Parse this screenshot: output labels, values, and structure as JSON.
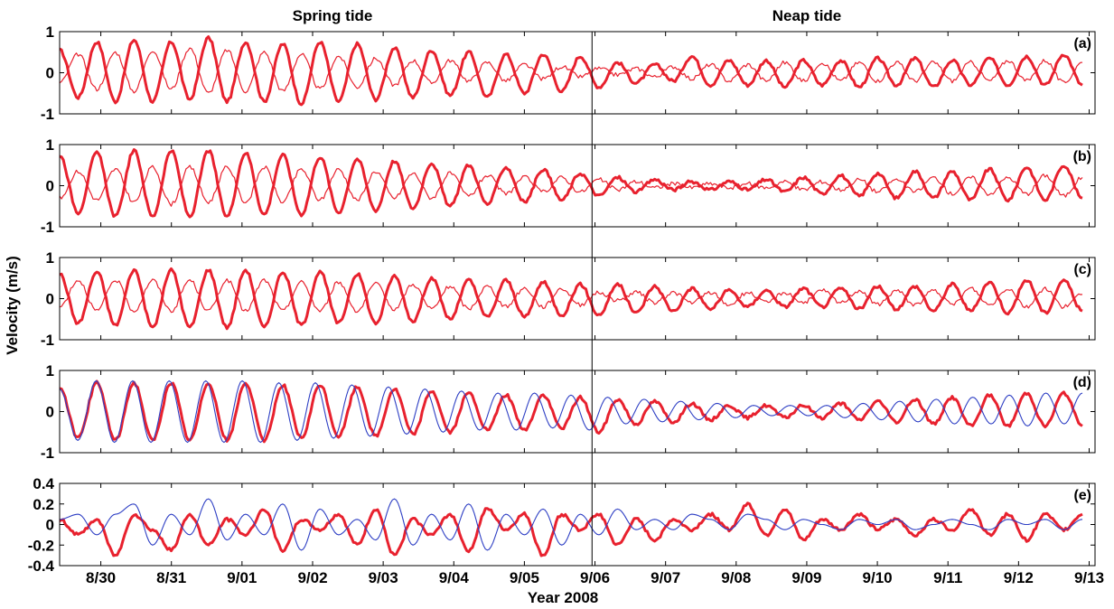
{
  "chart_data": {
    "type": "line",
    "headers": [
      "Spring tide",
      "Neap tide"
    ],
    "ylabel": "Velocity (m/s)",
    "xlabel": "Year 2008",
    "x_range": [
      "2008-08-29T10:00",
      "2008-09-13T02:00"
    ],
    "x_ticks": [
      "8/30",
      "8/31",
      "9/01",
      "9/02",
      "9/03",
      "9/04",
      "9/05",
      "9/06",
      "9/07",
      "9/08",
      "9/09",
      "9/10",
      "9/11",
      "9/12",
      "9/13"
    ],
    "tide_boundary": "2008-09-05T23:00",
    "colors": {
      "observed": "#e8212e",
      "model": "#2e3fc4",
      "axes": "#000000"
    },
    "panels": [
      {
        "label": "(a)",
        "ylim": [
          -1,
          1
        ],
        "yticks": [
          "1",
          "0",
          "-1"
        ],
        "series": [
          {
            "color": "#e8212e",
            "style": "thick",
            "values": [
              0.55,
              -0.6,
              0.75,
              -0.7,
              0.8,
              -0.7,
              0.75,
              -0.65,
              0.85,
              -0.7,
              0.75,
              -0.7,
              0.7,
              -0.75,
              0.75,
              -0.7,
              0.7,
              -0.65,
              0.6,
              -0.6,
              0.55,
              -0.55,
              0.5,
              -0.6,
              0.45,
              -0.5,
              0.45,
              -0.45,
              0.4,
              -0.35,
              0.25,
              -0.25,
              0.2,
              -0.2,
              0.4,
              -0.3,
              0.3,
              -0.3,
              0.3,
              -0.35,
              0.3,
              -0.3,
              0.3,
              -0.35,
              0.35,
              -0.3,
              0.35,
              -0.35,
              0.3,
              -0.3,
              0.35,
              -0.3,
              0.4,
              -0.3,
              0.45,
              -0.3
            ]
          },
          {
            "color": "#e8212e",
            "style": "thin",
            "values": [
              -0.25,
              0.45,
              -0.4,
              0.5,
              -0.45,
              0.55,
              -0.4,
              0.6,
              -0.5,
              0.55,
              -0.45,
              0.5,
              -0.45,
              0.45,
              -0.4,
              0.4,
              -0.35,
              0.35,
              -0.3,
              0.3,
              -0.25,
              0.3,
              -0.2,
              0.25,
              -0.2,
              0.2,
              -0.15,
              0.15,
              -0.1,
              0.1,
              -0.05,
              0.1,
              -0.1,
              0.15,
              -0.15,
              0.2,
              -0.2,
              0.2,
              -0.2,
              0.25,
              -0.2,
              0.25,
              -0.2,
              0.25,
              -0.2,
              0.25,
              -0.2,
              0.25,
              -0.2,
              0.25,
              -0.2,
              0.3,
              -0.2,
              0.3,
              -0.25,
              0.25
            ]
          }
        ]
      },
      {
        "label": "(b)",
        "ylim": [
          -1,
          1
        ],
        "yticks": [
          "1",
          "0",
          "-1"
        ],
        "series": [
          {
            "color": "#e8212e",
            "style": "thick",
            "values": [
              0.75,
              -0.65,
              0.8,
              -0.75,
              0.85,
              -0.75,
              0.85,
              -0.75,
              0.85,
              -0.75,
              0.8,
              -0.7,
              0.75,
              -0.7,
              0.7,
              -0.65,
              0.65,
              -0.6,
              0.6,
              -0.55,
              0.55,
              -0.5,
              0.5,
              -0.45,
              0.45,
              -0.4,
              0.4,
              -0.35,
              0.3,
              -0.25,
              0.2,
              -0.15,
              0.15,
              -0.1,
              0.1,
              -0.1,
              0.1,
              -0.1,
              0.15,
              -0.15,
              0.2,
              -0.2,
              0.25,
              -0.25,
              0.3,
              -0.3,
              0.35,
              -0.3,
              0.35,
              -0.35,
              0.4,
              -0.35,
              0.45,
              -0.35,
              0.5,
              -0.3
            ]
          },
          {
            "color": "#e8212e",
            "style": "thin",
            "values": [
              -0.3,
              0.35,
              -0.35,
              0.4,
              -0.4,
              0.45,
              -0.45,
              0.45,
              -0.4,
              0.45,
              -0.4,
              0.45,
              -0.4,
              0.4,
              -0.35,
              0.4,
              -0.35,
              0.35,
              -0.3,
              0.3,
              -0.3,
              0.3,
              -0.25,
              0.25,
              -0.2,
              0.2,
              -0.15,
              0.2,
              -0.15,
              0.15,
              -0.1,
              0.1,
              -0.05,
              0.05,
              -0.05,
              0.05,
              -0.05,
              0.05,
              -0.05,
              0.1,
              -0.1,
              0.1,
              -0.1,
              0.15,
              -0.15,
              0.15,
              -0.15,
              0.2,
              -0.2,
              0.2,
              -0.2,
              0.2,
              -0.2,
              0.25,
              -0.25,
              0.2
            ]
          }
        ]
      },
      {
        "label": "(c)",
        "ylim": [
          -1,
          1
        ],
        "yticks": [
          "1",
          "0",
          "-1"
        ],
        "series": [
          {
            "color": "#e8212e",
            "style": "thick",
            "values": [
              0.6,
              -0.6,
              0.65,
              -0.65,
              0.7,
              -0.7,
              0.7,
              -0.7,
              0.7,
              -0.7,
              0.7,
              -0.7,
              0.65,
              -0.65,
              0.65,
              -0.6,
              0.6,
              -0.6,
              0.55,
              -0.55,
              0.5,
              -0.5,
              0.45,
              -0.45,
              0.45,
              -0.45,
              0.4,
              -0.4,
              0.35,
              -0.4,
              0.35,
              -0.35,
              0.3,
              -0.3,
              0.25,
              -0.25,
              0.2,
              -0.2,
              0.2,
              -0.2,
              0.25,
              -0.2,
              0.25,
              -0.25,
              0.3,
              -0.25,
              0.3,
              -0.3,
              0.35,
              -0.3,
              0.4,
              -0.35,
              0.45,
              -0.35,
              0.45,
              -0.3
            ]
          },
          {
            "color": "#e8212e",
            "style": "thin",
            "values": [
              -0.2,
              0.45,
              -0.3,
              0.45,
              -0.3,
              0.45,
              -0.3,
              0.45,
              -0.3,
              0.45,
              -0.3,
              0.45,
              -0.3,
              0.4,
              -0.3,
              0.4,
              -0.3,
              0.35,
              -0.25,
              0.35,
              -0.25,
              0.3,
              -0.25,
              0.3,
              -0.2,
              0.25,
              -0.2,
              0.25,
              -0.15,
              0.15,
              -0.05,
              0.15,
              -0.1,
              0.15,
              -0.1,
              0.15,
              -0.15,
              0.15,
              -0.1,
              0.15,
              -0.1,
              0.2,
              -0.1,
              0.2,
              -0.15,
              0.2,
              -0.15,
              0.2,
              -0.15,
              0.25,
              -0.15,
              0.25,
              -0.2,
              0.25,
              -0.2,
              0.1
            ]
          }
        ]
      },
      {
        "label": "(d)",
        "ylim": [
          -1,
          1
        ],
        "yticks": [
          "1",
          "0",
          "-1"
        ],
        "series": [
          {
            "color": "#e8212e",
            "style": "thick",
            "values": [
              0.6,
              -0.65,
              0.7,
              -0.7,
              0.7,
              -0.7,
              0.7,
              -0.7,
              0.7,
              -0.7,
              0.7,
              -0.7,
              0.65,
              -0.65,
              0.65,
              -0.6,
              0.6,
              -0.6,
              0.55,
              -0.55,
              0.5,
              -0.5,
              0.45,
              -0.45,
              0.4,
              -0.45,
              0.4,
              -0.4,
              0.35,
              -0.5,
              0.3,
              -0.3,
              0.25,
              -0.25,
              0.2,
              -0.2,
              0.15,
              -0.15,
              0.15,
              -0.15,
              0.15,
              -0.15,
              0.2,
              -0.2,
              0.25,
              -0.25,
              0.3,
              -0.3,
              0.35,
              -0.35,
              0.4,
              -0.35,
              0.45,
              -0.35,
              0.45,
              -0.35
            ]
          },
          {
            "color": "#2e3fc4",
            "style": "model",
            "values": [
              0.55,
              -0.7,
              0.75,
              -0.75,
              0.75,
              -0.75,
              0.75,
              -0.75,
              0.75,
              -0.75,
              0.75,
              -0.75,
              0.7,
              -0.7,
              0.7,
              -0.65,
              0.65,
              -0.6,
              0.6,
              -0.55,
              0.55,
              -0.5,
              0.5,
              -0.45,
              0.45,
              -0.45,
              0.45,
              -0.4,
              0.4,
              -0.45,
              0.35,
              -0.3,
              0.3,
              -0.25,
              0.25,
              -0.2,
              0.2,
              -0.15,
              0.15,
              -0.1,
              0.15,
              -0.1,
              0.15,
              -0.15,
              0.2,
              -0.2,
              0.25,
              -0.25,
              0.3,
              -0.3,
              0.35,
              -0.3,
              0.4,
              -0.35,
              0.45,
              -0.3,
              0.45
            ]
          }
        ]
      },
      {
        "label": "(e)",
        "ylim": [
          -0.4,
          0.4
        ],
        "yticks": [
          "0.4",
          "0.2",
          "0",
          "-0.2",
          "-0.4"
        ],
        "series": [
          {
            "color": "#e8212e",
            "style": "thick",
            "values": [
              0.05,
              -0.1,
              0.05,
              -0.3,
              0.1,
              -0.05,
              -0.25,
              0.1,
              -0.2,
              0.05,
              -0.1,
              0.15,
              -0.25,
              0.05,
              -0.05,
              0.1,
              -0.2,
              0.15,
              -0.3,
              0.05,
              -0.1,
              0.1,
              -0.25,
              0.15,
              -0.05,
              0.1,
              -0.3,
              0.1,
              -0.05,
              0.1,
              -0.2,
              0.05,
              -0.15,
              0.05,
              -0.05,
              0.1,
              -0.05,
              0.2,
              -0.1,
              0.15,
              -0.15,
              0.05,
              -0.05,
              0.1,
              -0.05,
              0.05,
              -0.1,
              0.05,
              -0.05,
              0.15,
              -0.1,
              0.1,
              -0.15,
              0.1,
              -0.05,
              0.1
            ]
          },
          {
            "color": "#2e3fc4",
            "style": "model",
            "values": [
              0.05,
              0.1,
              -0.1,
              0.1,
              0.2,
              -0.2,
              0.1,
              -0.1,
              0.25,
              -0.15,
              0.1,
              -0.1,
              0.2,
              -0.25,
              0.15,
              -0.1,
              0.05,
              -0.15,
              0.25,
              -0.2,
              0.1,
              -0.15,
              0.2,
              -0.25,
              0.1,
              -0.1,
              0.15,
              -0.2,
              0.1,
              -0.1,
              0.15,
              -0.05,
              0.05,
              -0.05,
              0.1,
              0.05,
              -0.05,
              0.1,
              0.05,
              -0.05,
              0.05,
              0.0,
              -0.05,
              0.05,
              0.0,
              0.05,
              -0.05,
              0.0,
              0.05,
              0.0,
              -0.05,
              0.05,
              0.0,
              0.05,
              -0.05,
              0.05
            ]
          }
        ]
      }
    ]
  }
}
